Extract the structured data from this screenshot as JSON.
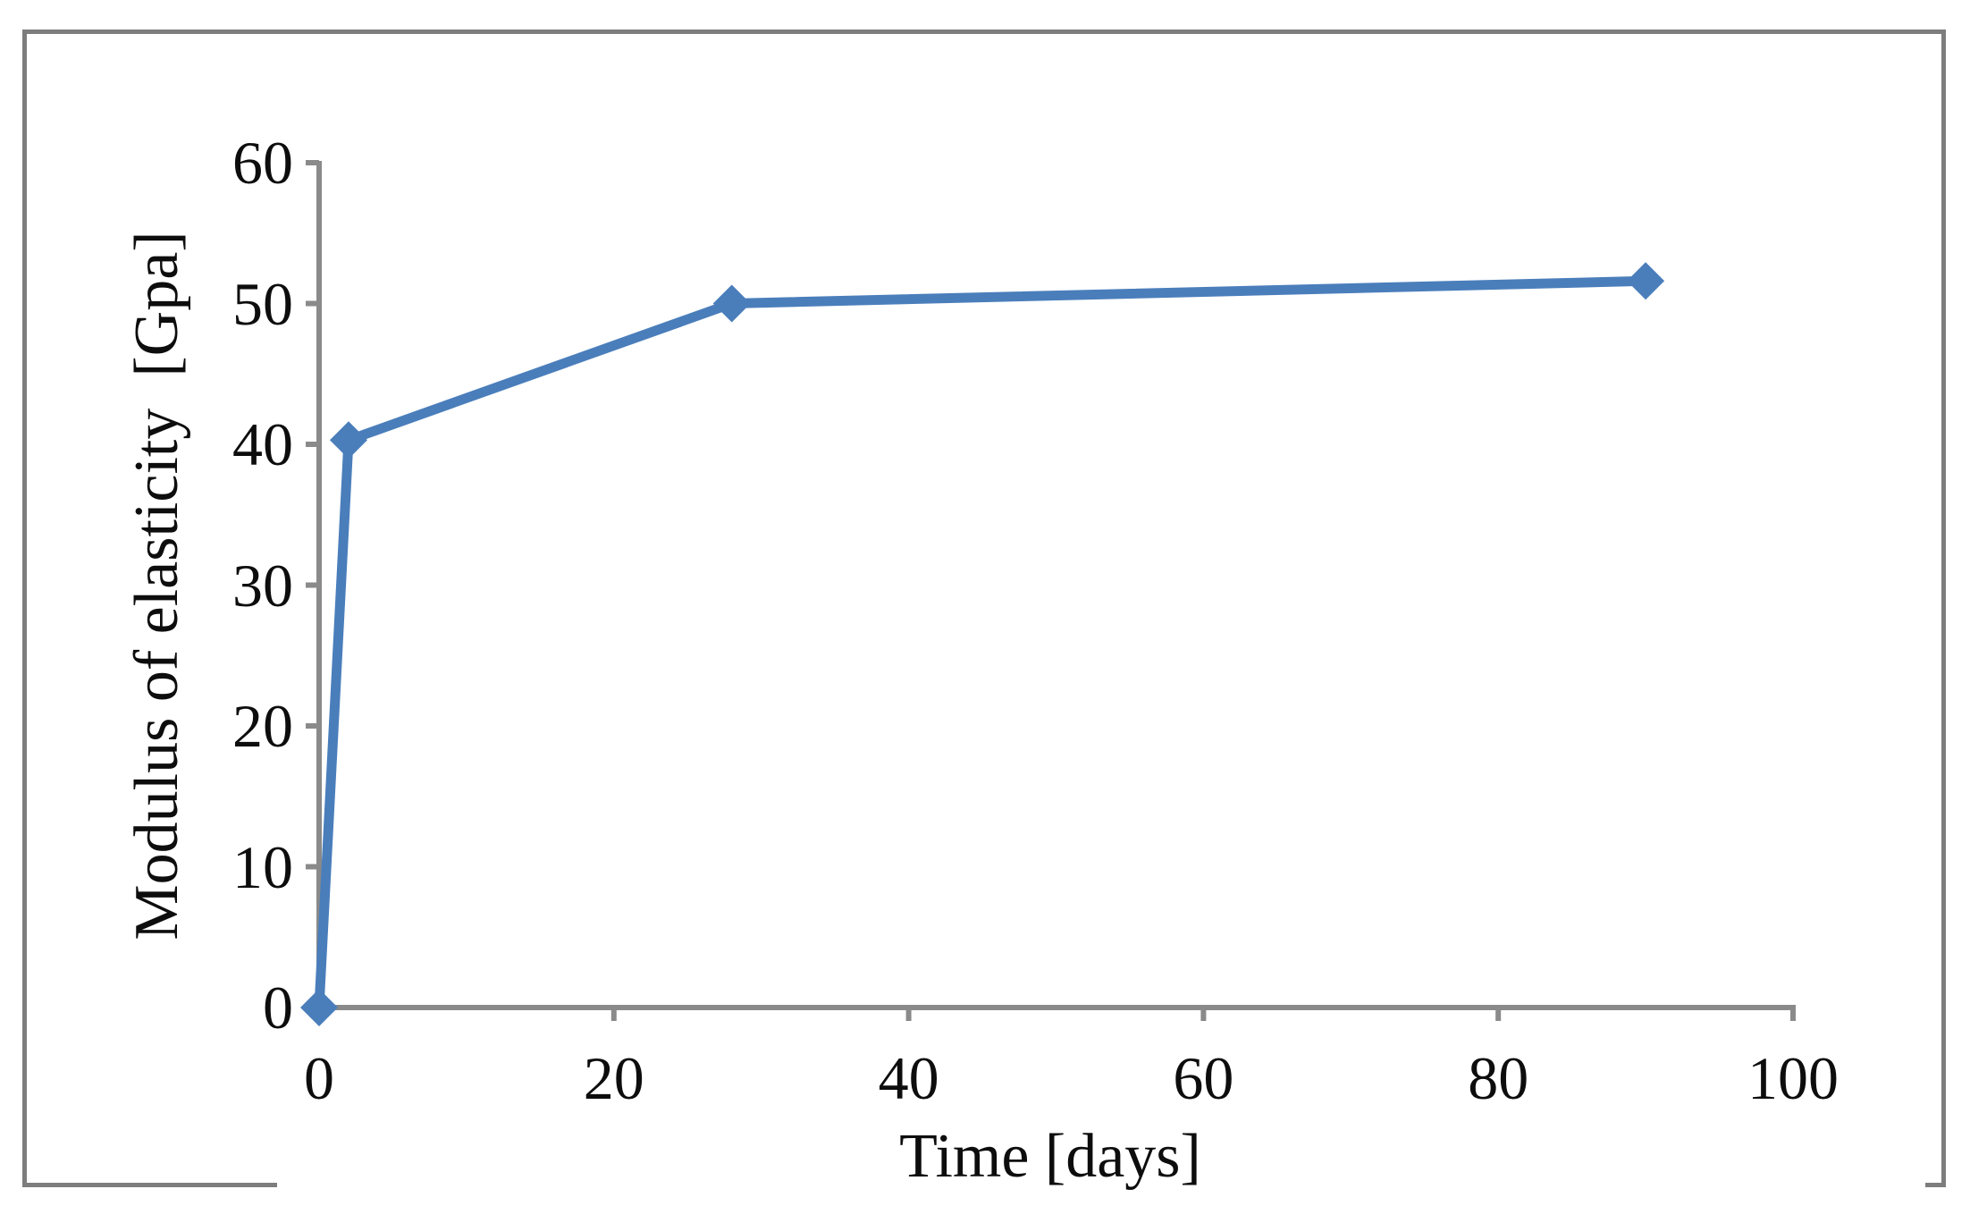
{
  "figure": {
    "border_color": "#7d7d7d",
    "background_color": "#ffffff"
  },
  "chart_data": {
    "type": "line",
    "title": "",
    "xlabel": "Time [days]",
    "ylabel": "Modulus of elasticity  [Gpa]",
    "xlim": [
      0,
      100
    ],
    "ylim": [
      0,
      60
    ],
    "xticks": [
      0,
      20,
      40,
      60,
      80,
      100
    ],
    "yticks": [
      0,
      10,
      20,
      30,
      40,
      50,
      60
    ],
    "grid": false,
    "legend": false,
    "axis_color": "#8a8a8a",
    "tick_label_color": "#0d0d0d",
    "series": [
      {
        "name": "Modulus of elasticity",
        "color": "#4a7ebb",
        "marker": "diamond",
        "points": [
          {
            "x": 0,
            "y": 0
          },
          {
            "x": 2,
            "y": 40.3
          },
          {
            "x": 28,
            "y": 50
          },
          {
            "x": 90,
            "y": 51.6
          }
        ]
      }
    ]
  }
}
